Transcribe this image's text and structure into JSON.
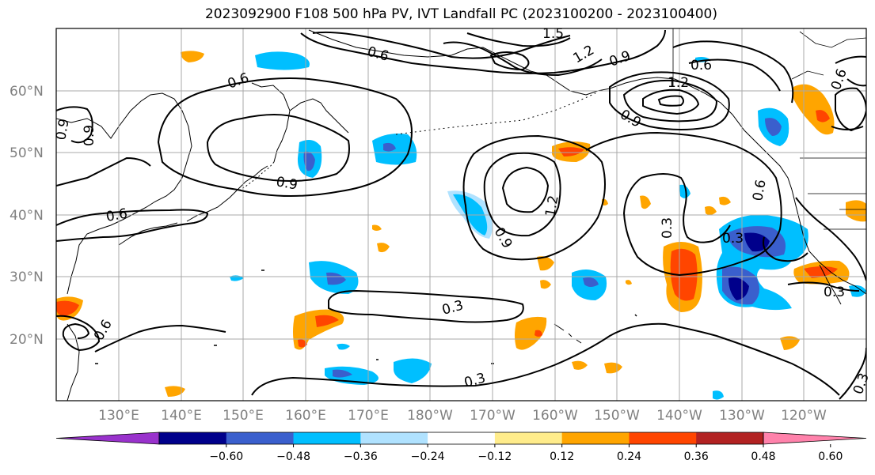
{
  "title": "2023092900 F108 500 hPa PV, IVT Landfall PC (2023100200 - 2023100400)",
  "lat_labels": [
    "60°N",
    "50°N",
    "40°N",
    "30°N",
    "20°N"
  ],
  "lon_labels": [
    "130°E",
    "140°E",
    "150°E",
    "160°E",
    "170°E",
    "180°W",
    "170°W",
    "160°W",
    "150°W",
    "140°W",
    "130°W",
    "120°W"
  ],
  "contour_labels": [
    "1.5",
    "0.6",
    "1.2",
    "0.9",
    "0.6",
    "1.2",
    "0.9",
    "0.6",
    "0.9",
    "0.6",
    "0.6",
    "0.9",
    "0.9",
    "1.2",
    "0.9",
    "0.3",
    "0.6",
    "0.3",
    "0.6",
    "0.3",
    "0.3",
    "0.3",
    "0.3",
    "0.6"
  ],
  "colorbar": {
    "ticks": [
      "−0.60",
      "−0.48",
      "−0.36",
      "−0.24",
      "−0.12",
      "0.12",
      "0.24",
      "0.36",
      "0.48",
      "0.60"
    ],
    "colors": [
      "#9932cc",
      "#00008b",
      "#3a5fcd",
      "#00bfff",
      "#b0e2ff",
      "#ffffff",
      "#ffec8b",
      "#ffa500",
      "#ff4500",
      "#b22222",
      "#ff82ab"
    ]
  },
  "colors": {
    "contour": "#000000",
    "coast": "#000000",
    "grid": "#a9a9a9"
  }
}
